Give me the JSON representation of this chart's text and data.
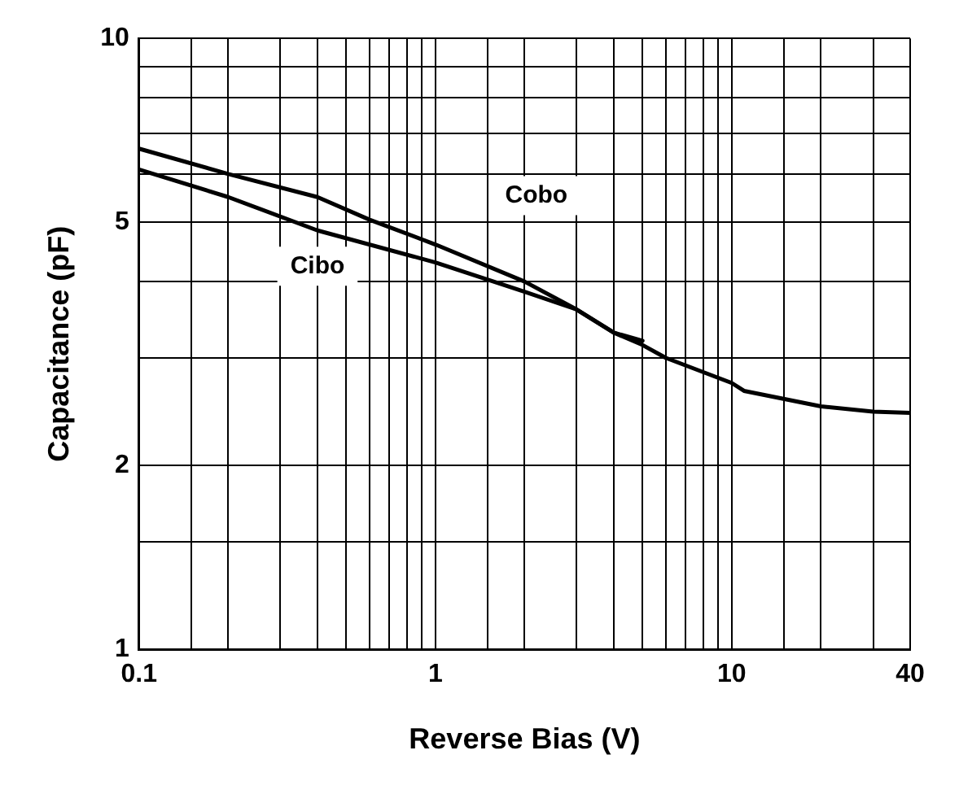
{
  "chart_data": {
    "type": "line",
    "xlabel": "Reverse Bias (V)",
    "ylabel": "Capacitance (pF)",
    "log": "xy",
    "grid": true,
    "legend": false,
    "marker": "none",
    "line_style": "solid",
    "xlim": [
      0.1,
      40
    ],
    "ylim": [
      1,
      10
    ],
    "xticks": [
      0.1,
      {
        "value": 0.15,
        "label": null
      },
      {
        "value": 0.2,
        "label": null
      },
      {
        "value": 0.3,
        "label": null
      },
      {
        "value": 0.4,
        "label": null
      },
      {
        "value": 0.5,
        "label": null
      },
      {
        "value": 0.6,
        "label": null
      },
      {
        "value": 0.7,
        "label": null
      },
      {
        "value": 0.8,
        "label": null
      },
      {
        "value": 0.9,
        "label": null
      },
      1,
      {
        "value": 1.5,
        "label": null
      },
      {
        "value": 2,
        "label": null
      },
      {
        "value": 3,
        "label": null
      },
      {
        "value": 4,
        "label": null
      },
      {
        "value": 5,
        "label": null
      },
      {
        "value": 6,
        "label": null
      },
      {
        "value": 7,
        "label": null
      },
      {
        "value": 8,
        "label": null
      },
      {
        "value": 9,
        "label": null
      },
      10,
      {
        "value": 15,
        "label": null
      },
      {
        "value": 20,
        "label": null
      },
      {
        "value": 30,
        "label": null
      },
      40
    ],
    "yticks": [
      1,
      {
        "value": 1.5,
        "label": null
      },
      2,
      {
        "value": 3,
        "label": null
      },
      {
        "value": 4,
        "label": null
      },
      5,
      {
        "value": 6,
        "label": null
      },
      {
        "value": 7,
        "label": null
      },
      {
        "value": 8,
        "label": null
      },
      {
        "value": 9,
        "label": null
      },
      10
    ],
    "series": [
      {
        "name": "Cobo",
        "color": "#000000",
        "x": [
          0.1,
          0.2,
          0.4,
          0.6,
          1,
          2,
          3,
          4,
          5,
          6,
          10,
          11,
          20,
          30,
          40
        ],
        "values": [
          6.6,
          6.0,
          5.5,
          5.05,
          4.6,
          4.0,
          3.6,
          3.3,
          3.15,
          3.0,
          2.73,
          2.65,
          2.5,
          2.45,
          2.44
        ]
      },
      {
        "name": "Cibo",
        "color": "#000000",
        "x": [
          0.1,
          0.2,
          0.4,
          1,
          2,
          3,
          4,
          5
        ],
        "values": [
          6.1,
          5.5,
          4.85,
          4.3,
          3.85,
          3.6,
          3.3,
          3.2
        ]
      }
    ]
  }
}
